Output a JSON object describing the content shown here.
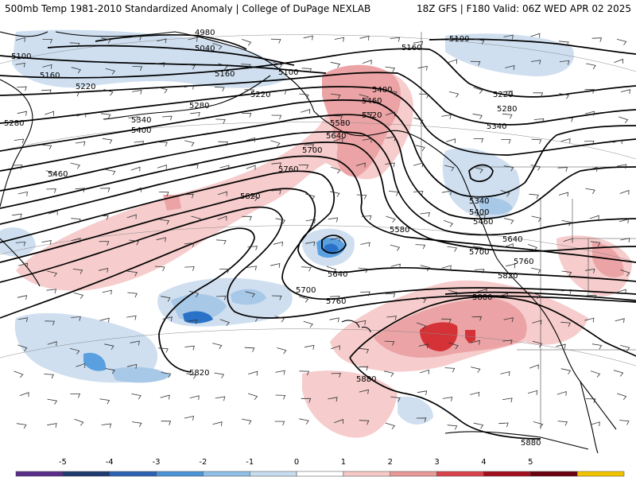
{
  "header": {
    "left": "500mb Temp 1981-2010 Standardized Anomaly | College of DuPage NEXLAB",
    "right": "18Z GFS | F180 Valid: 06Z WED APR 02 2025"
  },
  "colorbar": {
    "ticks": [
      "-5",
      "-4",
      "-3",
      "-2",
      "-1",
      "0",
      "1",
      "2",
      "3",
      "4",
      "5"
    ],
    "colors": [
      "#5b2d8a",
      "#1f3a6e",
      "#2d62b3",
      "#4a93d6",
      "#8fbfe6",
      "#c6dcef",
      "#ffffff",
      "#f4c9c6",
      "#e89996",
      "#d9424a",
      "#a30e1f",
      "#6b0010",
      "#f2c400"
    ]
  },
  "contours": {
    "labels": [
      "4980",
      "5040",
      "5100",
      "5160",
      "5220",
      "5280",
      "5340",
      "5400",
      "5460",
      "5520",
      "5580",
      "5640",
      "5700",
      "5760",
      "5820",
      "5880"
    ]
  },
  "colors": {
    "warm_light": "#f6cccc",
    "warm_mid": "#eba3a5",
    "warm_strong": "#d43236",
    "cool_light": "#cfdff0",
    "cool_mid": "#a8c8e8",
    "cool_strong": "#5aa0e0",
    "cool_deep": "#2a72c8"
  }
}
